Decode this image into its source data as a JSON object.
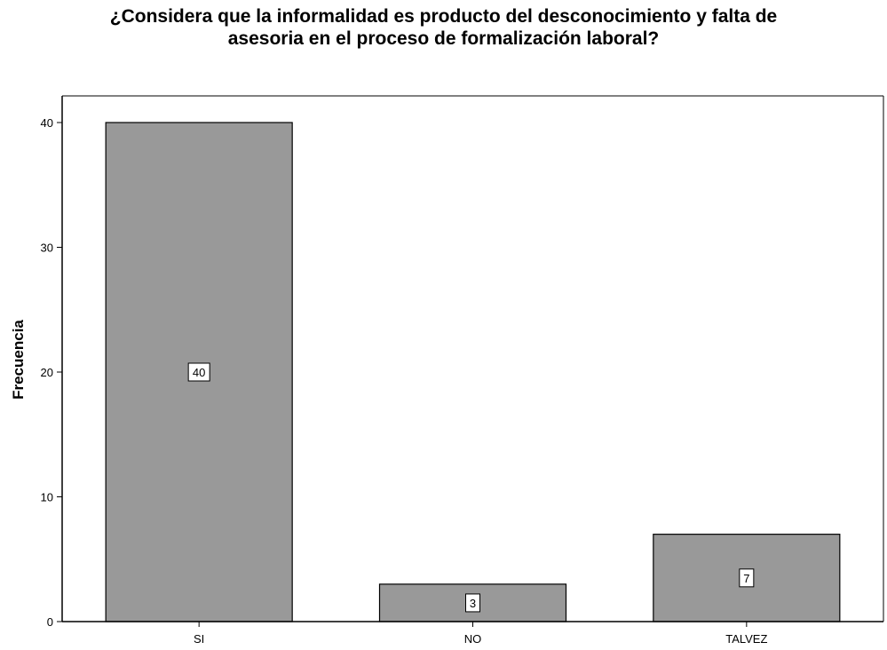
{
  "chart_data": {
    "type": "bar",
    "title_lines": [
      "¿Considera que la informalidad es producto del desconocimiento y falta de",
      "asesoria en el proceso de formalización laboral?"
    ],
    "categories": [
      "SI",
      "NO",
      "TALVEZ"
    ],
    "values": [
      40,
      3,
      7
    ],
    "data_labels": [
      "40",
      "3",
      "7"
    ],
    "xlabel": "",
    "ylabel": "Frecuencia",
    "ylim": [
      0,
      40
    ],
    "yticks": [
      0,
      10,
      20,
      30,
      40
    ],
    "grid": false,
    "legend": "none",
    "bar_color": "#999999",
    "bar_edge_color": "#000000"
  }
}
